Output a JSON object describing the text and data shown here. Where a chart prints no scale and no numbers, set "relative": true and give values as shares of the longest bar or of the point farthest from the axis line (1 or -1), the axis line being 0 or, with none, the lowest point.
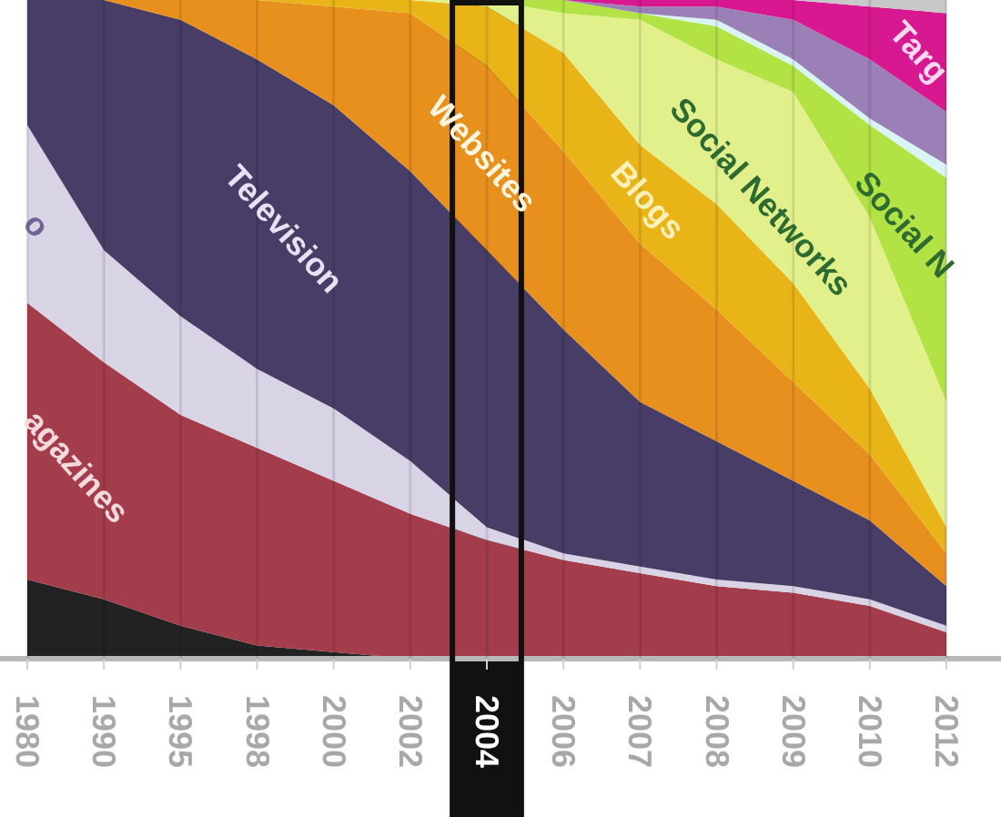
{
  "chart_data": {
    "type": "area",
    "stacked": true,
    "relative": true,
    "categories": [
      "1980",
      "1990",
      "1995",
      "1998",
      "2000",
      "2002",
      "2004",
      "2006",
      "2007",
      "2008",
      "2009",
      "2010",
      "2012"
    ],
    "series": [
      {
        "color": "#222222",
        "values": [
          0.12,
          0.09,
          0.05,
          0.02,
          0.01,
          0,
          0,
          0,
          0,
          0,
          0,
          0,
          0
        ]
      },
      {
        "name": "agazines",
        "color": "#a33d4b",
        "values": [
          0.42,
          0.36,
          0.32,
          0.3,
          0.26,
          0.22,
          0.18,
          0.15,
          0.13,
          0.11,
          0.1,
          0.08,
          0.04
        ]
      },
      {
        "name": "o",
        "color": "#d9d3e6",
        "values": [
          0.27,
          0.17,
          0.15,
          0.12,
          0.11,
          0.08,
          0.02,
          0.01,
          0.01,
          0.01,
          0.01,
          0.01,
          0.01
        ]
      },
      {
        "name": "Television",
        "color": "#483d66",
        "values": [
          0.19,
          0.38,
          0.45,
          0.47,
          0.46,
          0.44,
          0.42,
          0.34,
          0.25,
          0.21,
          0.16,
          0.12,
          0.06
        ]
      },
      {
        "name": "Websites",
        "color": "#e8901e",
        "values": [
          0,
          0,
          0.03,
          0.09,
          0.15,
          0.24,
          0.28,
          0.27,
          0.24,
          0.2,
          0.15,
          0.1,
          0.05
        ]
      },
      {
        "name": "Blogs",
        "color": "#e8b418",
        "values": [
          0,
          0,
          0,
          0,
          0.01,
          0.02,
          0.09,
          0.15,
          0.15,
          0.16,
          0.15,
          0.1,
          0.04
        ]
      },
      {
        "name": "Social Networks",
        "color": "#e2f08c",
        "values": [
          0,
          0,
          0,
          0,
          0,
          0,
          0.01,
          0.06,
          0.19,
          0.22,
          0.29,
          0.26,
          0.19
        ]
      },
      {
        "name": "Social N",
        "color": "#b2e244",
        "values": [
          0,
          0,
          0,
          0,
          0,
          0,
          0,
          0.02,
          0.01,
          0.05,
          0.04,
          0.14,
          0.34
        ]
      },
      {
        "color": "#d8f4f4",
        "values": [
          0,
          0,
          0,
          0,
          0,
          0,
          0,
          0,
          0,
          0.01,
          0.01,
          0.01,
          0.02
        ]
      },
      {
        "color": "#9b80b8",
        "values": [
          0,
          0,
          0,
          0,
          0,
          0,
          0,
          0,
          0.01,
          0.02,
          0.06,
          0.09,
          0.08
        ]
      },
      {
        "name": "Targ",
        "color": "#d81890",
        "values": [
          0,
          0,
          0,
          0,
          0,
          0,
          0,
          0,
          0.01,
          0.01,
          0.03,
          0.08,
          0.15
        ]
      },
      {
        "color": "#c8c8c8",
        "values": [
          0,
          0,
          0,
          0,
          0,
          0,
          0,
          0,
          0,
          0,
          0,
          0.01,
          0.02
        ]
      }
    ],
    "grid": "x",
    "bands": [
      {
        "axis": "x",
        "from": "2004",
        "to": "2004",
        "color": "#111111"
      }
    ]
  }
}
